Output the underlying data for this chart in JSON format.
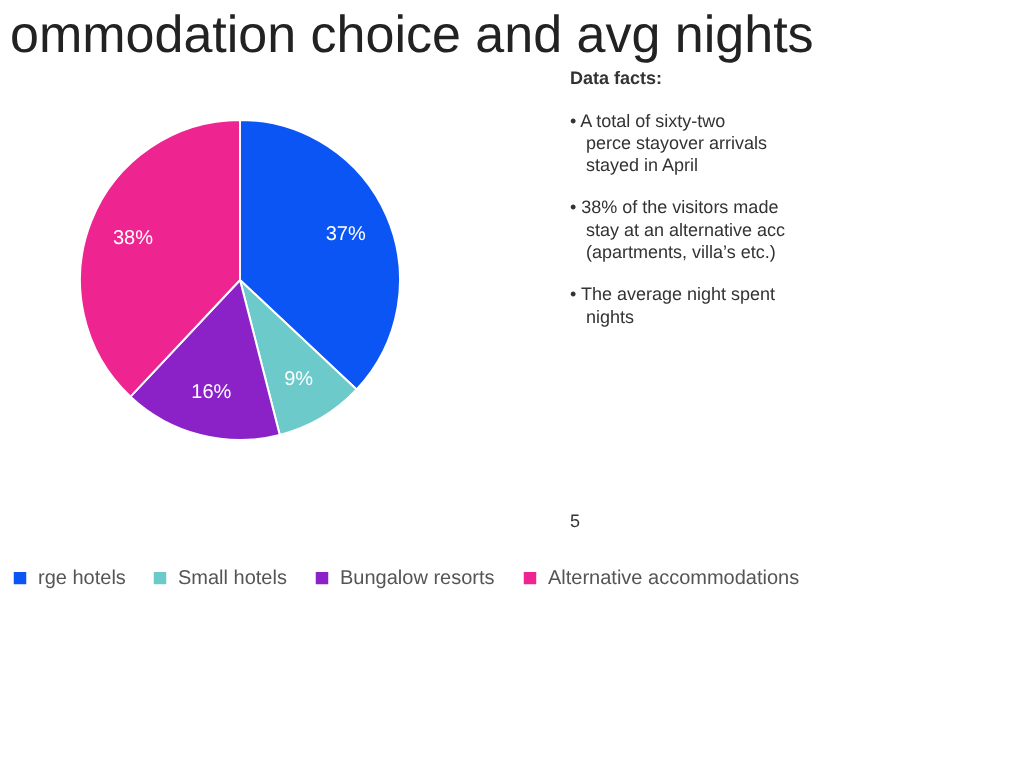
{
  "chart_data": {
    "type": "pie",
    "title": "ommodation choice and avg nights",
    "categories": [
      "rge hotels",
      "Small hotels",
      "Bungalow resorts",
      "Alternative accommodations"
    ],
    "values": [
      37,
      9,
      16,
      38
    ],
    "colors": [
      "#0b55f5",
      "#6ccaca",
      "#8b22c8",
      "#ee2590"
    ],
    "value_labels": [
      "37%",
      "9%",
      "16%",
      "38%"
    ],
    "legend": "bottom",
    "annotations": [
      "Data facts:",
      "• A total of sixty-two perce stayover arrivals stayed in April",
      "• 38% of the visitors made stay at an alternative acc (apartments, villa’s etc.)",
      "• The average night spent nights",
      "5"
    ]
  }
}
